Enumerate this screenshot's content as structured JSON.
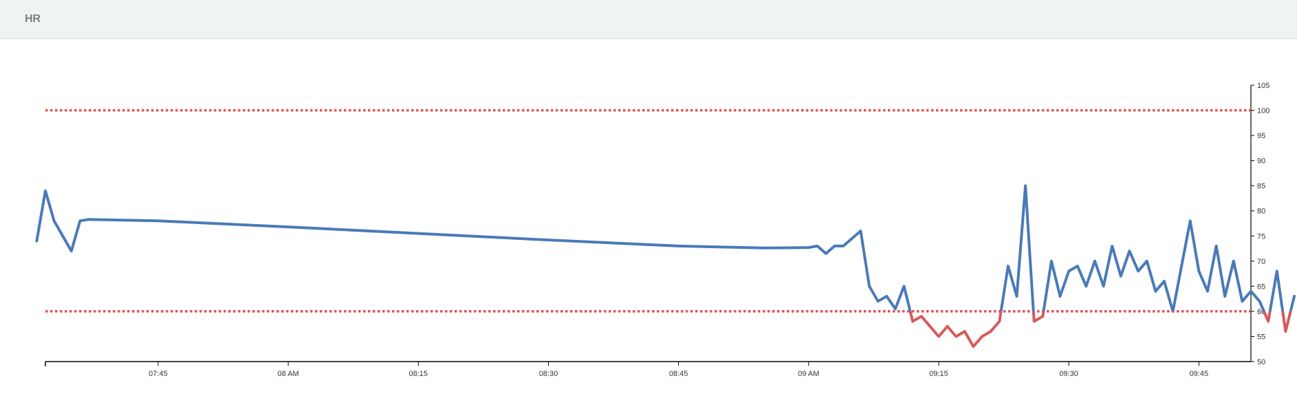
{
  "chart_data": {
    "type": "line",
    "title": "HR",
    "x": [
      "07:31",
      "07:32",
      "07:33",
      "07:34",
      "07:35",
      "07:36",
      "07:37",
      "07:45",
      "08:00",
      "08:15",
      "08:30",
      "08:45",
      "08:55",
      "09:00",
      "09:01",
      "09:02",
      "09:03",
      "09:04",
      "09:05",
      "09:06",
      "09:07",
      "09:08",
      "09:09",
      "09:10",
      "09:11",
      "09:12",
      "09:13",
      "09:14",
      "09:15",
      "09:16",
      "09:17",
      "09:18",
      "09:19",
      "09:20",
      "09:21",
      "09:22",
      "09:23",
      "09:24",
      "09:25",
      "09:26",
      "09:27",
      "09:28",
      "09:29",
      "09:30",
      "09:31",
      "09:32",
      "09:33",
      "09:34",
      "09:35",
      "09:36",
      "09:37",
      "09:38",
      "09:39",
      "09:40",
      "09:41",
      "09:42",
      "09:43",
      "09:44",
      "09:45",
      "09:46",
      "09:47",
      "09:48",
      "09:49",
      "09:50",
      "09:51",
      "09:52",
      "09:53",
      "09:54",
      "09:55",
      "09:56"
    ],
    "series": [
      {
        "color": "#4a7ab8",
        "low_color": "#d65a5a",
        "values": [
          74,
          84,
          78,
          75,
          72,
          78,
          78.3,
          78,
          76.8,
          75.5,
          74.2,
          73,
          72.6,
          72.7,
          73,
          71.5,
          73,
          73,
          74.5,
          76,
          65,
          62,
          63,
          60.5,
          65,
          58,
          59,
          57,
          55,
          57,
          55,
          56,
          53,
          55,
          56,
          58,
          69,
          63,
          85,
          58,
          59,
          70,
          63,
          68,
          69,
          65,
          70,
          65,
          73,
          67,
          72,
          68,
          70,
          64,
          66,
          60,
          69,
          78,
          68,
          64,
          73,
          63,
          70,
          62,
          64,
          62,
          58,
          68,
          56,
          63
        ]
      }
    ],
    "reference_lines": [
      {
        "value": 100,
        "color": "#e05252"
      },
      {
        "value": 60,
        "color": "#e05252"
      }
    ],
    "xlim": [
      "07:32",
      "09:51"
    ],
    "xticks": [
      "07:45",
      {
        "value": "08:00",
        "label": "08 AM"
      },
      "08:15",
      "08:30",
      "08:45",
      {
        "value": "09:00",
        "label": "09 AM"
      },
      "09:15",
      "09:30",
      "09:45"
    ],
    "ylim": [
      50,
      105
    ],
    "yticks": [
      50,
      55,
      60,
      65,
      70,
      75,
      80,
      85,
      90,
      95,
      100,
      105
    ]
  }
}
